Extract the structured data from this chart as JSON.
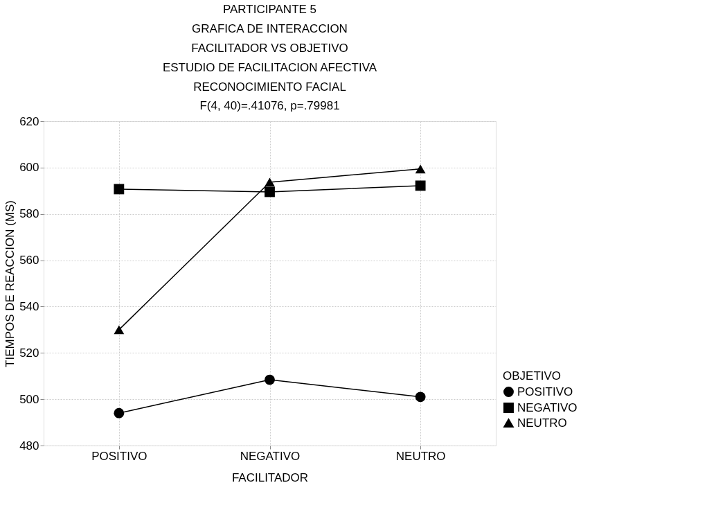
{
  "chart_data": {
    "type": "line",
    "title": "PARTICIPANTE 5\nGRAFICA DE INTERACCION\nFACILITADOR VS OBJETIVO\nESTUDIO DE FACILITACION AFECTIVA\nRECONOCIMIENTO FACIAL",
    "subtitle": "F(4, 40)=.41076, p=.79981",
    "xlabel": "FACILITADOR",
    "ylabel": "TIEMPOS DE REACCION (MS)",
    "legend_title": "OBJETIVO",
    "categories": [
      "POSITIVO",
      "NEGATIVO",
      "NEUTRO"
    ],
    "series": [
      {
        "name": "POSITIVO",
        "color": "#000000",
        "marker": "circle",
        "values": [
          494,
          508.4,
          501
        ]
      },
      {
        "name": "NEGATIVO",
        "color": "#000000",
        "marker": "square",
        "values": [
          590.7,
          589.5,
          592.2
        ]
      },
      {
        "name": "NEUTRO",
        "color": "#000000",
        "marker": "triangle",
        "values": [
          530,
          593.7,
          599.4
        ]
      }
    ],
    "ylim": [
      480,
      620
    ],
    "yticks": [
      480,
      500,
      520,
      540,
      560,
      580,
      600,
      620
    ],
    "grid": true,
    "legend": "bottom right",
    "line_style": "solid"
  }
}
